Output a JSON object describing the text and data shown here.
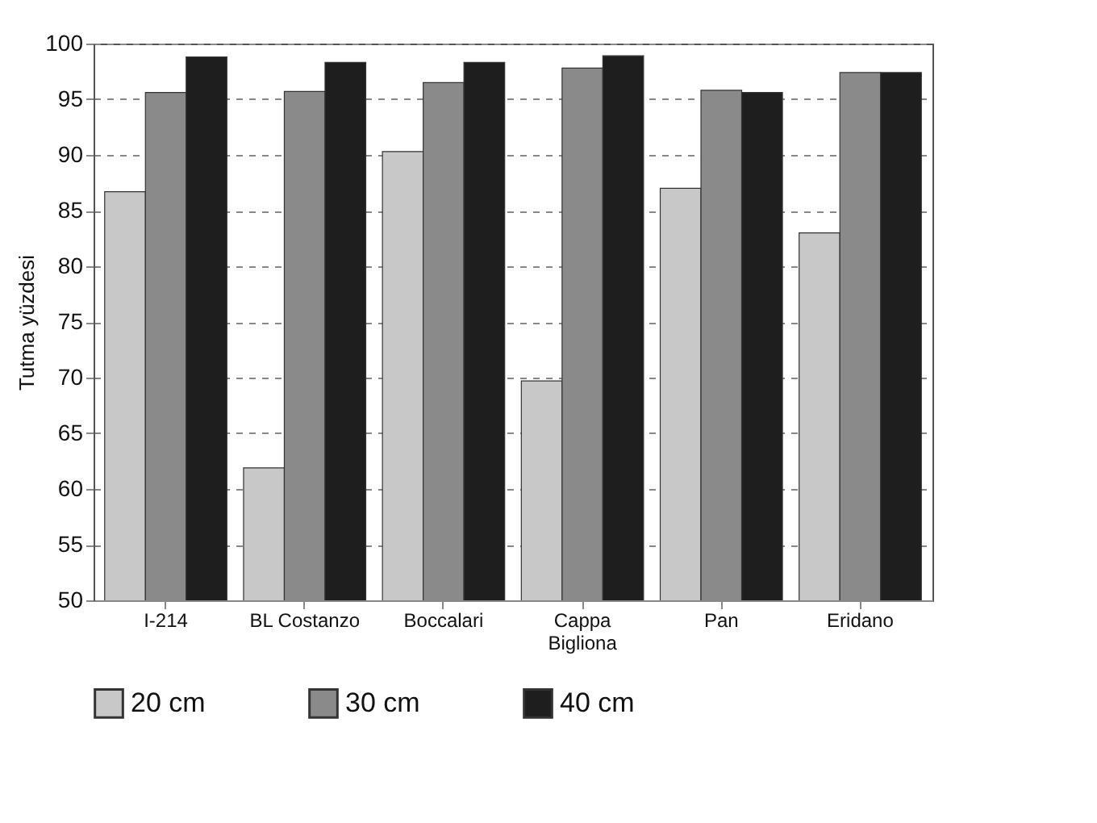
{
  "chart_data": {
    "type": "bar",
    "ylabel": "Tutma yüzdesi",
    "categories": [
      "I-214",
      "BL Costanzo",
      "Boccalari",
      "Cappa Bigliona",
      "Pan",
      "Eridano"
    ],
    "series": [
      {
        "name": "20 cm",
        "color": "#c8c8c8",
        "values": [
          86.7,
          61.9,
          90.3,
          69.7,
          87,
          83
        ]
      },
      {
        "name": "30 cm",
        "color": "#8a8a8a",
        "values": [
          95.6,
          95.7,
          96.5,
          97.8,
          95.8,
          97.4
        ]
      },
      {
        "name": "40 cm",
        "color": "#1e1e1e",
        "values": [
          98.8,
          98.3,
          98.3,
          98.9,
          95.6,
          97.4
        ]
      }
    ],
    "ylim": [
      50,
      100
    ],
    "yticks": [
      50,
      55,
      60,
      65,
      70,
      75,
      80,
      85,
      90,
      95,
      100
    ],
    "grid": "y",
    "legend": "bottom"
  }
}
